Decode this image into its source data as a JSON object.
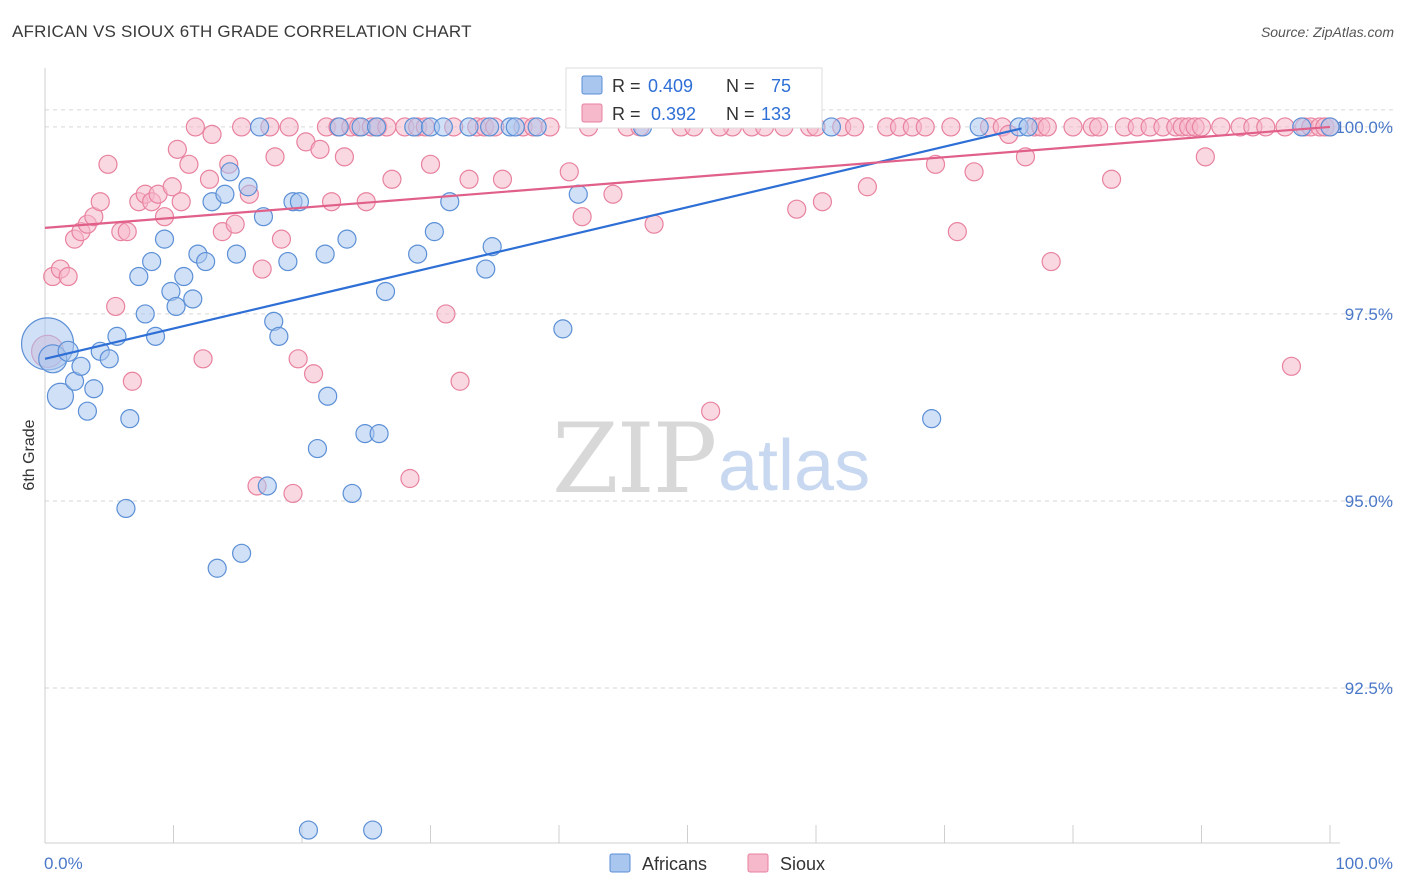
{
  "header": {
    "title": "AFRICAN VS SIOUX 6TH GRADE CORRELATION CHART",
    "source": "Source: ZipAtlas.com"
  },
  "watermark": {
    "zip": "ZIP",
    "atlas": "atlas"
  },
  "legend_box": {
    "africans": {
      "r_label": "R =",
      "r_value": "0.409",
      "n_label": "N =",
      "n_value": "75"
    },
    "sioux": {
      "r_label": "R =",
      "r_value": "0.392",
      "n_label": "N =",
      "n_value": "133"
    }
  },
  "bottom_legend": {
    "africans": "Africans",
    "sioux": "Sioux"
  },
  "colors": {
    "africans_fill": "#a9c6ee",
    "africans_stroke": "#5b8fd6",
    "africans_line": "#2e6fd6",
    "sioux_fill": "#f6b8cb",
    "sioux_stroke": "#e8829f",
    "sioux_line": "#e0608a",
    "tick": "#4a78c8",
    "grid": "#d6d6d6"
  },
  "chart_data": {
    "type": "scatter",
    "title": "AFRICAN VS SIOUX 6TH GRADE CORRELATION CHART",
    "xlabel": "",
    "ylabel": "6th Grade",
    "xlim": [
      0,
      100
    ],
    "ylim": [
      90.2,
      100.4
    ],
    "x_tick_labels": [
      "0.0%",
      "100.0%"
    ],
    "y_ticks": [
      {
        "value": 92.5,
        "label": "92.5%"
      },
      {
        "value": 95.0,
        "label": "95.0%"
      },
      {
        "value": 97.5,
        "label": "97.5%"
      },
      {
        "value": 100.0,
        "label": "100.0%"
      }
    ],
    "series": [
      {
        "name": "Africans",
        "r": 0.409,
        "n": 75,
        "trend": {
          "x": [
            0,
            76
          ],
          "y": [
            96.9,
            99.98
          ]
        },
        "points": [
          [
            0.2,
            97.1,
            26
          ],
          [
            0.6,
            96.9,
            14
          ],
          [
            1.2,
            96.4,
            13
          ],
          [
            1.8,
            97.0,
            10
          ],
          [
            2.3,
            96.6,
            9
          ],
          [
            2.8,
            96.8,
            9
          ],
          [
            3.3,
            96.2,
            9
          ],
          [
            3.8,
            96.5,
            9
          ],
          [
            4.3,
            97.0,
            9
          ],
          [
            5.0,
            96.9,
            9
          ],
          [
            5.6,
            97.2,
            9
          ],
          [
            6.3,
            94.9,
            9
          ],
          [
            6.6,
            96.1,
            9
          ],
          [
            7.3,
            98.0,
            9
          ],
          [
            7.8,
            97.5,
            9
          ],
          [
            8.3,
            98.2,
            9
          ],
          [
            8.6,
            97.2,
            9
          ],
          [
            9.3,
            98.5,
            9
          ],
          [
            9.8,
            97.8,
            9
          ],
          [
            10.2,
            97.6,
            9
          ],
          [
            10.8,
            98.0,
            9
          ],
          [
            11.5,
            97.7,
            9
          ],
          [
            11.9,
            98.3,
            9
          ],
          [
            12.5,
            98.2,
            9
          ],
          [
            13.0,
            99.0,
            9
          ],
          [
            13.4,
            94.1,
            9
          ],
          [
            14.0,
            99.1,
            9
          ],
          [
            14.4,
            99.4,
            9
          ],
          [
            14.9,
            98.3,
            9
          ],
          [
            15.3,
            94.3,
            9
          ],
          [
            15.8,
            99.2,
            9
          ],
          [
            16.7,
            100.0,
            9
          ],
          [
            17.0,
            98.8,
            9
          ],
          [
            17.3,
            95.2,
            9
          ],
          [
            17.8,
            97.4,
            9
          ],
          [
            18.2,
            97.2,
            9
          ],
          [
            18.9,
            98.2,
            9
          ],
          [
            19.3,
            99.0,
            9
          ],
          [
            19.8,
            99.0,
            9
          ],
          [
            20.5,
            90.6,
            9
          ],
          [
            21.2,
            95.7,
            9
          ],
          [
            21.8,
            98.3,
            9
          ],
          [
            22.0,
            96.4,
            9
          ],
          [
            22.9,
            100.0,
            9
          ],
          [
            23.5,
            98.5,
            9
          ],
          [
            23.9,
            95.1,
            9
          ],
          [
            24.6,
            100.0,
            9
          ],
          [
            24.9,
            95.9,
            9
          ],
          [
            25.8,
            100.0,
            9
          ],
          [
            25.5,
            90.6,
            9
          ],
          [
            26.0,
            95.9,
            9
          ],
          [
            26.5,
            97.8,
            9
          ],
          [
            28.7,
            100.0,
            9
          ],
          [
            29.0,
            98.3,
            9
          ],
          [
            30.0,
            100.0,
            9
          ],
          [
            30.3,
            98.6,
            9
          ],
          [
            31.0,
            100.0,
            9
          ],
          [
            31.5,
            99.0,
            9
          ],
          [
            33.0,
            100.0,
            9
          ],
          [
            34.3,
            98.1,
            9
          ],
          [
            34.8,
            98.4,
            9
          ],
          [
            34.6,
            100.0,
            9
          ],
          [
            36.2,
            100.0,
            9
          ],
          [
            36.6,
            100.0,
            9
          ],
          [
            38.3,
            100.0,
            9
          ],
          [
            40.3,
            97.3,
            9
          ],
          [
            41.5,
            99.1,
            9
          ],
          [
            46.5,
            100.0,
            9
          ],
          [
            61.2,
            100.0,
            9
          ],
          [
            69.0,
            96.1,
            9
          ],
          [
            72.7,
            100.0,
            9
          ],
          [
            75.8,
            100.0,
            9
          ],
          [
            76.5,
            100.0,
            9
          ],
          [
            97.8,
            100.0,
            9
          ],
          [
            100.0,
            100.0,
            9
          ]
        ]
      },
      {
        "name": "Sioux",
        "r": 0.392,
        "n": 133,
        "trend": {
          "x": [
            0,
            100
          ],
          "y": [
            98.65,
            100.0
          ]
        },
        "points": [
          [
            0.2,
            97.0,
            16
          ],
          [
            0.6,
            98.0,
            9
          ],
          [
            1.2,
            98.1,
            9
          ],
          [
            1.8,
            98.0,
            9
          ],
          [
            2.3,
            98.5,
            9
          ],
          [
            2.8,
            98.6,
            9
          ],
          [
            3.3,
            98.7,
            9
          ],
          [
            3.8,
            98.8,
            9
          ],
          [
            4.3,
            99.0,
            9
          ],
          [
            4.9,
            99.5,
            9
          ],
          [
            5.5,
            97.6,
            9
          ],
          [
            5.9,
            98.6,
            9
          ],
          [
            6.4,
            98.6,
            9
          ],
          [
            6.8,
            96.6,
            9
          ],
          [
            7.3,
            99.0,
            9
          ],
          [
            7.8,
            99.1,
            9
          ],
          [
            8.3,
            99.0,
            9
          ],
          [
            8.8,
            99.1,
            9
          ],
          [
            9.3,
            98.8,
            9
          ],
          [
            9.9,
            99.2,
            9
          ],
          [
            10.3,
            99.7,
            9
          ],
          [
            10.6,
            99.0,
            9
          ],
          [
            11.2,
            99.5,
            9
          ],
          [
            11.7,
            100.0,
            9
          ],
          [
            12.3,
            96.9,
            9
          ],
          [
            12.8,
            99.3,
            9
          ],
          [
            13.0,
            99.9,
            9
          ],
          [
            13.8,
            98.6,
            9
          ],
          [
            14.3,
            99.5,
            9
          ],
          [
            14.8,
            98.7,
            9
          ],
          [
            15.3,
            100.0,
            9
          ],
          [
            15.9,
            99.1,
            9
          ],
          [
            16.5,
            95.2,
            9
          ],
          [
            16.9,
            98.1,
            9
          ],
          [
            17.5,
            100.0,
            9
          ],
          [
            17.9,
            99.6,
            9
          ],
          [
            18.4,
            98.5,
            9
          ],
          [
            19.0,
            100.0,
            9
          ],
          [
            19.3,
            95.1,
            9
          ],
          [
            19.7,
            96.9,
            9
          ],
          [
            20.3,
            99.8,
            9
          ],
          [
            20.9,
            96.7,
            9
          ],
          [
            21.4,
            99.7,
            9
          ],
          [
            21.9,
            100.0,
            9
          ],
          [
            22.3,
            99.0,
            9
          ],
          [
            22.8,
            100.0,
            9
          ],
          [
            23.3,
            99.6,
            9
          ],
          [
            23.8,
            100.0,
            9
          ],
          [
            24.4,
            100.0,
            9
          ],
          [
            25.0,
            99.0,
            9
          ],
          [
            25.4,
            100.0,
            9
          ],
          [
            25.9,
            100.0,
            9
          ],
          [
            26.6,
            100.0,
            9
          ],
          [
            27.0,
            99.3,
            9
          ],
          [
            28.0,
            100.0,
            9
          ],
          [
            28.4,
            95.3,
            9
          ],
          [
            29.0,
            100.0,
            9
          ],
          [
            29.6,
            100.0,
            9
          ],
          [
            30.0,
            99.5,
            9
          ],
          [
            31.2,
            97.5,
            9
          ],
          [
            31.8,
            100.0,
            9
          ],
          [
            32.3,
            96.6,
            9
          ],
          [
            33.0,
            99.3,
            9
          ],
          [
            33.6,
            100.0,
            9
          ],
          [
            34.2,
            100.0,
            9
          ],
          [
            35.0,
            100.0,
            9
          ],
          [
            35.6,
            99.3,
            9
          ],
          [
            37.2,
            100.0,
            9
          ],
          [
            38.0,
            100.0,
            9
          ],
          [
            39.3,
            100.0,
            9
          ],
          [
            40.8,
            99.4,
            9
          ],
          [
            41.8,
            98.8,
            9
          ],
          [
            42.3,
            100.0,
            9
          ],
          [
            44.2,
            99.1,
            9
          ],
          [
            45.3,
            100.0,
            9
          ],
          [
            47.4,
            98.7,
            9
          ],
          [
            49.5,
            100.0,
            9
          ],
          [
            50.5,
            100.0,
            9
          ],
          [
            51.8,
            96.2,
            9
          ],
          [
            53.5,
            100.0,
            9
          ],
          [
            55.0,
            100.0,
            9
          ],
          [
            56.0,
            100.0,
            9
          ],
          [
            57.5,
            100.0,
            9
          ],
          [
            58.5,
            98.9,
            9
          ],
          [
            59.5,
            100.0,
            9
          ],
          [
            60.5,
            99.0,
            9
          ],
          [
            62.0,
            100.0,
            9
          ],
          [
            63.0,
            100.0,
            9
          ],
          [
            64.0,
            99.2,
            9
          ],
          [
            65.5,
            100.0,
            9
          ],
          [
            66.5,
            100.0,
            9
          ],
          [
            67.5,
            100.0,
            9
          ],
          [
            68.5,
            100.0,
            9
          ],
          [
            69.3,
            99.5,
            9
          ],
          [
            70.5,
            100.0,
            9
          ],
          [
            71.0,
            98.6,
            9
          ],
          [
            72.3,
            99.4,
            9
          ],
          [
            73.5,
            100.0,
            9
          ],
          [
            74.5,
            100.0,
            9
          ],
          [
            75.0,
            99.9,
            9
          ],
          [
            76.3,
            99.6,
            9
          ],
          [
            77.0,
            100.0,
            9
          ],
          [
            77.5,
            100.0,
            9
          ],
          [
            78.0,
            100.0,
            9
          ],
          [
            78.3,
            98.2,
            9
          ],
          [
            80.0,
            100.0,
            9
          ],
          [
            81.5,
            100.0,
            9
          ],
          [
            82.0,
            100.0,
            9
          ],
          [
            83.0,
            99.3,
            9
          ],
          [
            84.0,
            100.0,
            9
          ],
          [
            85.0,
            100.0,
            9
          ],
          [
            86.0,
            100.0,
            9
          ],
          [
            87.0,
            100.0,
            9
          ],
          [
            88.0,
            100.0,
            9
          ],
          [
            88.5,
            100.0,
            9
          ],
          [
            89.0,
            100.0,
            9
          ],
          [
            89.5,
            100.0,
            9
          ],
          [
            90.0,
            100.0,
            9
          ],
          [
            90.3,
            99.6,
            9
          ],
          [
            91.5,
            100.0,
            9
          ],
          [
            93.0,
            100.0,
            9
          ],
          [
            94.0,
            100.0,
            9
          ],
          [
            95.0,
            100.0,
            9
          ],
          [
            96.5,
            100.0,
            9
          ],
          [
            97.0,
            96.8,
            9
          ],
          [
            98.0,
            100.0,
            9
          ],
          [
            98.5,
            100.0,
            9
          ],
          [
            99.2,
            100.0,
            9
          ],
          [
            99.6,
            100.0,
            9
          ],
          [
            100.0,
            100.0,
            9
          ],
          [
            60.0,
            100.0,
            9
          ],
          [
            52.5,
            100.0,
            9
          ],
          [
            46.3,
            100.0,
            9
          ]
        ]
      }
    ]
  }
}
